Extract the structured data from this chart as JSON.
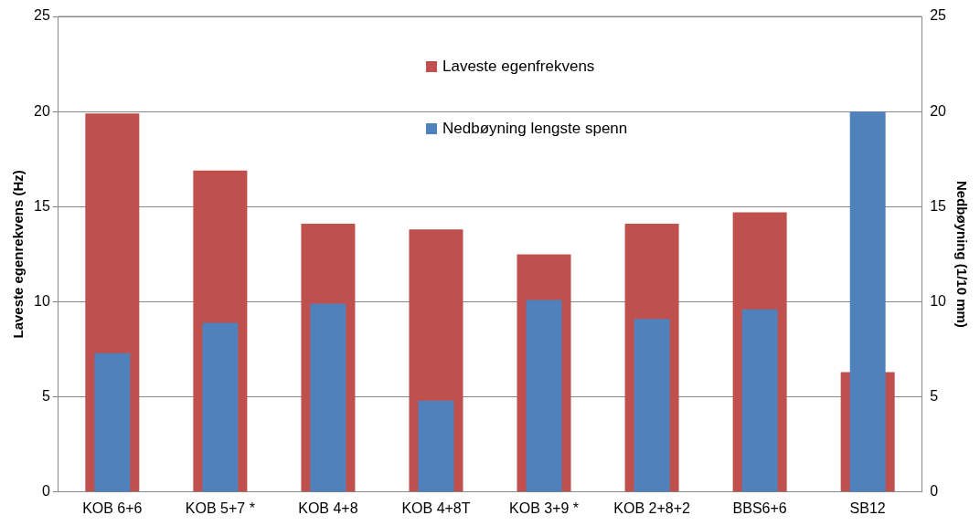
{
  "chart_data": {
    "type": "bar",
    "ylabel": "Laveste egenrekvens (Hz)",
    "y2label": "Nedbøyning (1/10 mm)",
    "categories": [
      "KOB 6+6",
      "KOB 5+7 *",
      "KOB 4+8",
      "KOB 4+8T",
      "KOB 3+9 *",
      "KOB 2+8+2",
      "BBS6+6",
      "SB12"
    ],
    "series": [
      {
        "name": "Laveste egenfrekvens",
        "color": "#c0504d",
        "values": [
          19.9,
          16.9,
          14.1,
          13.8,
          12.5,
          14.1,
          14.7,
          6.3
        ]
      },
      {
        "name": "Nedbøyning lengste spenn",
        "color": "#4f81bd",
        "axis": "y2",
        "values": [
          7.3,
          8.9,
          9.9,
          4.8,
          10.1,
          9.1,
          9.6,
          20.0
        ]
      }
    ],
    "ylim": [
      0,
      25
    ],
    "yticks": [
      0,
      5,
      10,
      15,
      20,
      25
    ],
    "y2lim": [
      0,
      25
    ],
    "y2ticks": [
      0,
      5,
      10,
      15,
      20,
      25
    ],
    "grid": "y",
    "legend": "top"
  }
}
